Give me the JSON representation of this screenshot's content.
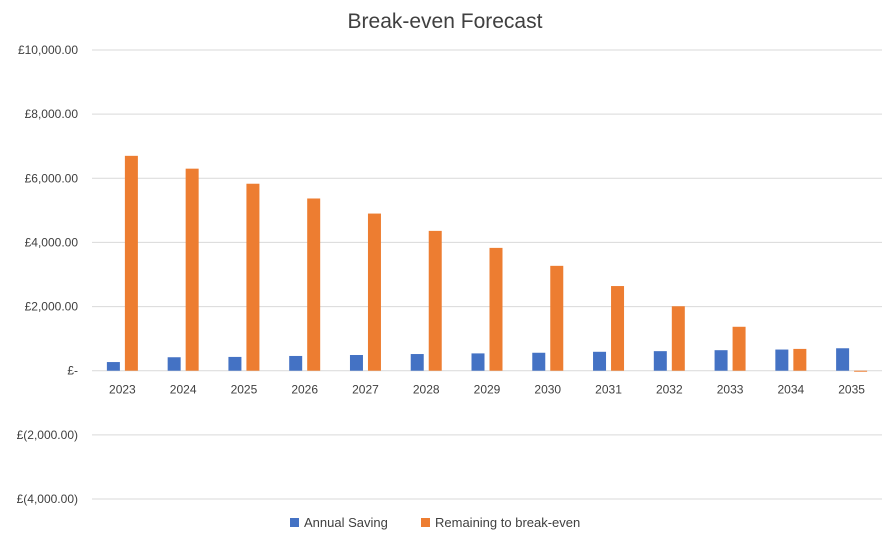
{
  "chart_data": {
    "type": "bar",
    "title": "Break-even Forecast",
    "xlabel": "",
    "ylabel": "",
    "categories": [
      "2023",
      "2024",
      "2025",
      "2026",
      "2027",
      "2028",
      "2029",
      "2030",
      "2031",
      "2032",
      "2033",
      "2034",
      "2035"
    ],
    "series": [
      {
        "name": "Annual Saving",
        "color": "#4472c4",
        "values": [
          270,
          420,
          430,
          460,
          490,
          520,
          540,
          560,
          590,
          610,
          640,
          660,
          700
        ]
      },
      {
        "name": "Remaining to break-even",
        "color": "#ed7d31",
        "values": [
          6700,
          6300,
          5830,
          5370,
          4900,
          4360,
          3830,
          3270,
          2640,
          2010,
          1370,
          680,
          -30
        ]
      }
    ],
    "ylim": [
      -4000,
      10000
    ],
    "yticks": [
      10000,
      8000,
      6000,
      4000,
      2000,
      0,
      -2000,
      -4000
    ],
    "ytick_labels": [
      "£10,000.00",
      "£8,000.00",
      "£6,000.00",
      "£4,000.00",
      "£2,000.00",
      "£-",
      "£(2,000.00)",
      "£(4,000.00)"
    ],
    "grid": true,
    "legend_position": "bottom"
  }
}
